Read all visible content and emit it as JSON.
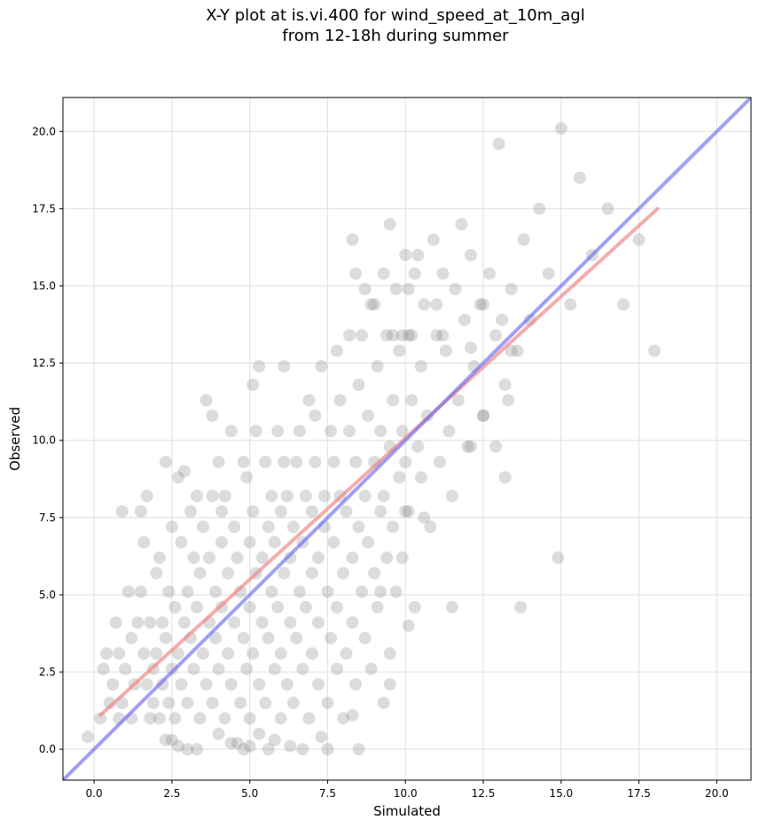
{
  "chart_data": {
    "type": "scatter",
    "title_line1": "X-Y plot at is.vi.400 for wind_speed_at_10m_agl",
    "title_line2": "from 12-18h during summer",
    "xlabel": "Simulated",
    "ylabel": "Observed",
    "xlim": [
      -1.0,
      21.1
    ],
    "ylim": [
      -1.0,
      21.1
    ],
    "xticks": [
      0.0,
      2.5,
      5.0,
      7.5,
      10.0,
      12.5,
      15.0,
      17.5,
      20.0
    ],
    "yticks": [
      0.0,
      2.5,
      5.0,
      7.5,
      10.0,
      12.5,
      15.0,
      17.5,
      20.0
    ],
    "xtick_labels": [
      "0.0",
      "2.5",
      "5.0",
      "7.5",
      "10.0",
      "12.5",
      "15.0",
      "17.5",
      "20.0"
    ],
    "ytick_labels": [
      "0.0",
      "2.5",
      "5.0",
      "7.5",
      "10.0",
      "12.5",
      "15.0",
      "17.5",
      "20.0"
    ],
    "grid": true,
    "colors": {
      "points": "#808080",
      "regression": "#f08080",
      "identity": "#6b6bf0"
    },
    "series": [
      {
        "values": [
          [
            -0.2,
            0.4
          ],
          [
            0.2,
            1.0
          ],
          [
            0.3,
            2.6
          ],
          [
            0.4,
            3.1
          ],
          [
            0.5,
            1.5
          ],
          [
            0.6,
            2.1
          ],
          [
            0.7,
            4.1
          ],
          [
            0.8,
            1.0
          ],
          [
            0.8,
            3.1
          ],
          [
            0.9,
            7.7
          ],
          [
            0.9,
            1.5
          ],
          [
            1.0,
            2.6
          ],
          [
            1.1,
            5.1
          ],
          [
            1.2,
            3.6
          ],
          [
            1.2,
            1.0
          ],
          [
            1.3,
            2.1
          ],
          [
            1.4,
            4.1
          ],
          [
            1.5,
            7.7
          ],
          [
            1.5,
            5.1
          ],
          [
            1.6,
            3.1
          ],
          [
            1.6,
            6.7
          ],
          [
            1.7,
            8.2
          ],
          [
            1.7,
            2.1
          ],
          [
            1.8,
            1.0
          ],
          [
            1.8,
            4.1
          ],
          [
            1.9,
            2.6
          ],
          [
            1.9,
            1.5
          ],
          [
            2.0,
            5.7
          ],
          [
            2.0,
            3.1
          ],
          [
            2.1,
            6.2
          ],
          [
            2.1,
            1.0
          ],
          [
            2.2,
            4.1
          ],
          [
            2.2,
            2.1
          ],
          [
            2.3,
            9.3
          ],
          [
            2.3,
            0.3
          ],
          [
            2.3,
            3.6
          ],
          [
            2.4,
            1.5
          ],
          [
            2.4,
            5.1
          ],
          [
            2.5,
            7.2
          ],
          [
            2.5,
            2.6
          ],
          [
            2.6,
            4.6
          ],
          [
            2.6,
            1.0
          ],
          [
            2.7,
            8.8
          ],
          [
            2.7,
            3.1
          ],
          [
            2.7,
            0.1
          ],
          [
            2.8,
            6.7
          ],
          [
            2.8,
            2.1
          ],
          [
            2.9,
            9.0
          ],
          [
            2.9,
            4.1
          ],
          [
            3.0,
            5.1
          ],
          [
            3.0,
            1.5
          ],
          [
            3.1,
            7.7
          ],
          [
            3.1,
            3.6
          ],
          [
            3.2,
            6.2
          ],
          [
            3.2,
            2.6
          ],
          [
            3.3,
            0.0
          ],
          [
            3.3,
            8.2
          ],
          [
            3.3,
            4.6
          ],
          [
            3.4,
            1.0
          ],
          [
            3.4,
            5.7
          ],
          [
            3.5,
            3.1
          ],
          [
            3.5,
            7.2
          ],
          [
            3.6,
            2.1
          ],
          [
            3.6,
            11.3
          ],
          [
            3.7,
            4.1
          ],
          [
            3.7,
            6.2
          ],
          [
            3.8,
            10.8
          ],
          [
            3.8,
            1.5
          ],
          [
            3.8,
            8.2
          ],
          [
            3.9,
            5.1
          ],
          [
            3.9,
            3.6
          ],
          [
            4.0,
            9.3
          ],
          [
            4.0,
            0.5
          ],
          [
            4.0,
            2.6
          ],
          [
            4.1,
            7.7
          ],
          [
            4.1,
            6.7
          ],
          [
            4.1,
            4.6
          ],
          [
            4.2,
            1.0
          ],
          [
            4.2,
            8.2
          ],
          [
            4.3,
            3.1
          ],
          [
            4.3,
            5.7
          ],
          [
            4.4,
            10.3
          ],
          [
            4.4,
            2.1
          ],
          [
            4.5,
            7.2
          ],
          [
            4.5,
            4.1
          ],
          [
            4.6,
            0.2
          ],
          [
            4.6,
            6.2
          ],
          [
            4.7,
            1.5
          ],
          [
            4.7,
            5.1
          ],
          [
            4.8,
            3.6
          ],
          [
            4.8,
            9.3
          ],
          [
            4.8,
            0.0
          ],
          [
            4.9,
            2.6
          ],
          [
            4.9,
            8.8
          ],
          [
            5.0,
            6.7
          ],
          [
            5.0,
            4.6
          ],
          [
            5.0,
            1.0
          ],
          [
            5.1,
            11.8
          ],
          [
            5.1,
            7.7
          ],
          [
            5.1,
            3.1
          ],
          [
            5.2,
            5.7
          ],
          [
            5.2,
            10.3
          ],
          [
            5.3,
            2.1
          ],
          [
            5.3,
            12.4
          ],
          [
            5.3,
            0.5
          ],
          [
            5.4,
            6.2
          ],
          [
            5.4,
            4.1
          ],
          [
            5.5,
            9.3
          ],
          [
            5.5,
            1.5
          ],
          [
            5.6,
            7.2
          ],
          [
            5.6,
            3.6
          ],
          [
            5.7,
            5.1
          ],
          [
            5.7,
            8.2
          ],
          [
            5.8,
            0.3
          ],
          [
            5.8,
            2.6
          ],
          [
            5.8,
            6.7
          ],
          [
            5.9,
            10.3
          ],
          [
            5.9,
            4.6
          ],
          [
            6.0,
            1.0
          ],
          [
            6.0,
            7.7
          ],
          [
            6.0,
            3.1
          ],
          [
            6.1,
            9.3
          ],
          [
            6.1,
            5.7
          ],
          [
            6.1,
            12.4
          ],
          [
            6.2,
            2.1
          ],
          [
            6.2,
            8.2
          ],
          [
            6.3,
            4.1
          ],
          [
            6.3,
            6.2
          ],
          [
            6.3,
            0.1
          ],
          [
            6.4,
            1.5
          ],
          [
            6.4,
            7.2
          ],
          [
            6.5,
            9.3
          ],
          [
            6.5,
            3.6
          ],
          [
            6.6,
            5.1
          ],
          [
            6.6,
            10.3
          ],
          [
            6.7,
            0.0
          ],
          [
            6.7,
            6.7
          ],
          [
            6.7,
            2.6
          ],
          [
            6.8,
            8.2
          ],
          [
            6.8,
            4.6
          ],
          [
            6.9,
            11.3
          ],
          [
            6.9,
            1.0
          ],
          [
            7.0,
            7.7
          ],
          [
            7.0,
            5.7
          ],
          [
            7.0,
            3.1
          ],
          [
            7.1,
            9.3
          ],
          [
            7.1,
            10.8
          ],
          [
            7.2,
            2.1
          ],
          [
            7.2,
            6.2
          ],
          [
            7.2,
            4.1
          ],
          [
            7.3,
            12.4
          ],
          [
            7.3,
            0.4
          ],
          [
            7.4,
            8.2
          ],
          [
            7.4,
            7.2
          ],
          [
            7.5,
            5.1
          ],
          [
            7.5,
            1.5
          ],
          [
            7.6,
            10.3
          ],
          [
            7.6,
            3.6
          ],
          [
            7.7,
            9.3
          ],
          [
            7.7,
            6.7
          ],
          [
            7.8,
            2.6
          ],
          [
            7.8,
            12.9
          ],
          [
            7.8,
            4.6
          ],
          [
            7.9,
            8.2
          ],
          [
            7.9,
            11.3
          ],
          [
            8.0,
            5.7
          ],
          [
            8.0,
            1.0
          ],
          [
            8.1,
            7.7
          ],
          [
            8.1,
            3.1
          ],
          [
            8.2,
            13.4
          ],
          [
            8.2,
            10.3
          ],
          [
            8.3,
            6.2
          ],
          [
            8.3,
            4.1
          ],
          [
            8.4,
            9.3
          ],
          [
            8.4,
            2.1
          ],
          [
            8.5,
            11.8
          ],
          [
            8.5,
            7.2
          ],
          [
            8.5,
            0.0
          ],
          [
            8.6,
            5.1
          ],
          [
            8.6,
            13.4
          ],
          [
            8.7,
            8.2
          ],
          [
            8.7,
            3.6
          ],
          [
            8.8,
            10.8
          ],
          [
            8.8,
            6.7
          ],
          [
            8.9,
            14.4
          ],
          [
            8.9,
            2.6
          ],
          [
            9.0,
            9.3
          ],
          [
            9.0,
            5.7
          ],
          [
            9.1,
            12.4
          ],
          [
            9.1,
            4.6
          ],
          [
            9.2,
            7.7
          ],
          [
            9.2,
            10.3
          ],
          [
            9.3,
            1.5
          ],
          [
            9.3,
            15.4
          ],
          [
            9.3,
            8.2
          ],
          [
            9.4,
            6.2
          ],
          [
            9.4,
            13.4
          ],
          [
            9.5,
            3.1
          ],
          [
            9.5,
            9.8
          ],
          [
            9.6,
            11.3
          ],
          [
            9.6,
            7.2
          ],
          [
            9.7,
            5.1
          ],
          [
            9.7,
            14.9
          ],
          [
            9.8,
            8.8
          ],
          [
            9.8,
            12.9
          ],
          [
            9.9,
            10.3
          ],
          [
            9.9,
            6.2
          ],
          [
            10.0,
            16.0
          ],
          [
            10.0,
            9.3
          ],
          [
            10.1,
            7.7
          ],
          [
            10.1,
            13.4
          ],
          [
            10.2,
            11.3
          ],
          [
            10.3,
            4.6
          ],
          [
            10.3,
            15.4
          ],
          [
            10.4,
            9.8
          ],
          [
            10.5,
            12.4
          ],
          [
            10.5,
            8.8
          ],
          [
            10.6,
            14.4
          ],
          [
            10.7,
            10.8
          ],
          [
            10.8,
            7.2
          ],
          [
            10.9,
            16.5
          ],
          [
            11.0,
            13.4
          ],
          [
            11.1,
            9.3
          ],
          [
            11.2,
            15.4
          ],
          [
            11.3,
            12.9
          ],
          [
            11.4,
            10.3
          ],
          [
            11.5,
            8.2
          ],
          [
            11.6,
            14.9
          ],
          [
            11.7,
            11.3
          ],
          [
            11.8,
            17.0
          ],
          [
            11.9,
            13.9
          ],
          [
            12.0,
            9.8
          ],
          [
            12.1,
            16.0
          ],
          [
            12.2,
            12.4
          ],
          [
            12.4,
            14.4
          ],
          [
            12.5,
            10.8
          ],
          [
            12.7,
            15.4
          ],
          [
            12.9,
            13.4
          ],
          [
            13.0,
            19.6
          ],
          [
            13.2,
            11.8
          ],
          [
            13.4,
            14.9
          ],
          [
            13.6,
            12.9
          ],
          [
            13.8,
            16.5
          ],
          [
            14.0,
            13.9
          ],
          [
            14.3,
            17.5
          ],
          [
            14.6,
            15.4
          ],
          [
            15.0,
            20.1
          ],
          [
            15.3,
            14.4
          ],
          [
            15.6,
            18.5
          ],
          [
            16.0,
            16.0
          ],
          [
            16.5,
            17.5
          ],
          [
            17.0,
            14.4
          ],
          [
            17.5,
            16.5
          ],
          [
            18.0,
            12.9
          ],
          [
            2.5,
            0.3
          ],
          [
            3.0,
            0.0
          ],
          [
            4.4,
            0.2
          ],
          [
            5.0,
            0.1
          ],
          [
            5.6,
            0.0
          ],
          [
            7.5,
            0.0
          ],
          [
            8.3,
            1.1
          ],
          [
            9.5,
            2.1
          ],
          [
            10.1,
            4.0
          ],
          [
            11.5,
            4.6
          ],
          [
            13.7,
            4.6
          ],
          [
            14.9,
            6.2
          ],
          [
            13.2,
            8.8
          ],
          [
            10.6,
            7.5
          ],
          [
            10.0,
            7.7
          ],
          [
            9.2,
            5.1
          ],
          [
            8.3,
            16.5
          ],
          [
            8.4,
            15.4
          ],
          [
            8.7,
            14.9
          ],
          [
            9.0,
            14.4
          ],
          [
            9.5,
            17.0
          ],
          [
            10.1,
            14.9
          ],
          [
            10.4,
            16.0
          ],
          [
            11.0,
            14.4
          ],
          [
            12.1,
            13.0
          ],
          [
            11.2,
            13.4
          ],
          [
            13.3,
            11.3
          ],
          [
            13.4,
            12.9
          ],
          [
            13.1,
            13.9
          ],
          [
            12.5,
            10.8
          ],
          [
            12.1,
            9.8
          ],
          [
            12.5,
            14.4
          ],
          [
            12.9,
            9.8
          ],
          [
            9.6,
            13.4
          ],
          [
            9.9,
            13.4
          ],
          [
            10.2,
            13.4
          ]
        ]
      }
    ],
    "lines": [
      {
        "kind": "regression",
        "points": [
          [
            0.2,
            1.1
          ],
          [
            18.1,
            17.5
          ]
        ]
      },
      {
        "kind": "identity",
        "points": [
          [
            -1.0,
            -1.0
          ],
          [
            21.1,
            21.1
          ]
        ]
      }
    ]
  }
}
